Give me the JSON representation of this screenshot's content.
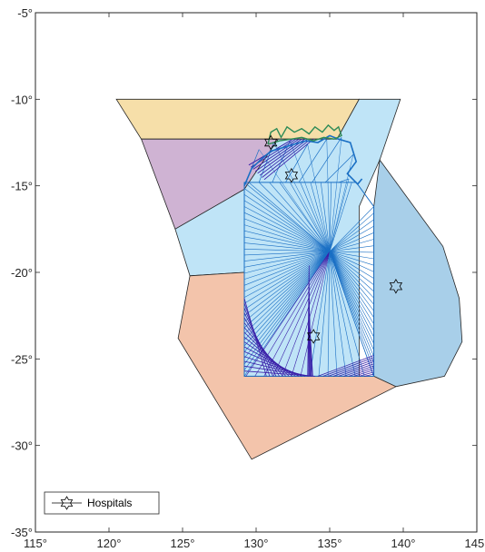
{
  "chart_data": {
    "type": "map",
    "xlim": [
      115,
      145
    ],
    "ylim": [
      -35,
      -5
    ],
    "x_ticks": [
      {
        "value": 115,
        "label": "115°"
      },
      {
        "value": 120,
        "label": "120°"
      },
      {
        "value": 125,
        "label": "125°"
      },
      {
        "value": 130,
        "label": "130°"
      },
      {
        "value": 135,
        "label": "135°"
      },
      {
        "value": 140,
        "label": "140°"
      },
      {
        "value": 145,
        "label": "145°"
      }
    ],
    "y_ticks": [
      {
        "value": -5,
        "label": "-5°"
      },
      {
        "value": -10,
        "label": "-10°"
      },
      {
        "value": -15,
        "label": "-15°"
      },
      {
        "value": -20,
        "label": "-20°"
      },
      {
        "value": -25,
        "label": "-25°"
      },
      {
        "value": -30,
        "label": "-30°"
      },
      {
        "value": -35,
        "label": "-35°"
      }
    ],
    "grid": false,
    "legend": {
      "position": "bottom-left",
      "entries": [
        "Hospitals"
      ]
    },
    "regions": [
      {
        "id": "north",
        "color": "#f6dfa9",
        "points": [
          [
            120.5,
            -10
          ],
          [
            137,
            -10
          ],
          [
            135.5,
            -12.3
          ],
          [
            122.2,
            -12.3
          ]
        ]
      },
      {
        "id": "northwest",
        "color": "#cfb3d3",
        "points": [
          [
            122.2,
            -12.3
          ],
          [
            131.5,
            -12.3
          ],
          [
            129.2,
            -15.2
          ],
          [
            124.5,
            -17.5
          ]
        ]
      },
      {
        "id": "central",
        "color": "#bfe4f7",
        "points": [
          [
            131.5,
            -12.3
          ],
          [
            135.5,
            -12.3
          ],
          [
            137,
            -10
          ],
          [
            139.8,
            -10
          ],
          [
            138.4,
            -13.5
          ],
          [
            137,
            -16.2
          ],
          [
            137,
            -26
          ],
          [
            129.2,
            -26
          ],
          [
            129.2,
            -20
          ],
          [
            125.5,
            -20.2
          ],
          [
            124.5,
            -17.5
          ],
          [
            129.2,
            -15.2
          ]
        ]
      },
      {
        "id": "east",
        "color": "#a8cfe9",
        "points": [
          [
            138.4,
            -13.5
          ],
          [
            142.7,
            -18.5
          ],
          [
            143.8,
            -21.5
          ],
          [
            144,
            -24
          ],
          [
            142.8,
            -26
          ],
          [
            139.5,
            -26.6
          ],
          [
            138,
            -26
          ],
          [
            138,
            -16.2
          ]
        ]
      },
      {
        "id": "south",
        "color": "#f3c4ab",
        "points": [
          [
            125.5,
            -20.2
          ],
          [
            129.2,
            -20
          ],
          [
            129.2,
            -26
          ],
          [
            138,
            -26
          ],
          [
            139.5,
            -26.6
          ],
          [
            129.7,
            -30.8
          ],
          [
            124.7,
            -23.8
          ]
        ]
      }
    ],
    "hospitals": [
      {
        "lon": 131.0,
        "lat": -12.5
      },
      {
        "lon": 132.4,
        "lat": -14.4
      },
      {
        "lon": 139.5,
        "lat": -20.8
      },
      {
        "lon": 133.9,
        "lat": -23.7
      }
    ],
    "coast_color": "#2e8b57",
    "network_colors": [
      "#1a6fc4",
      "#3a1fa8"
    ]
  }
}
